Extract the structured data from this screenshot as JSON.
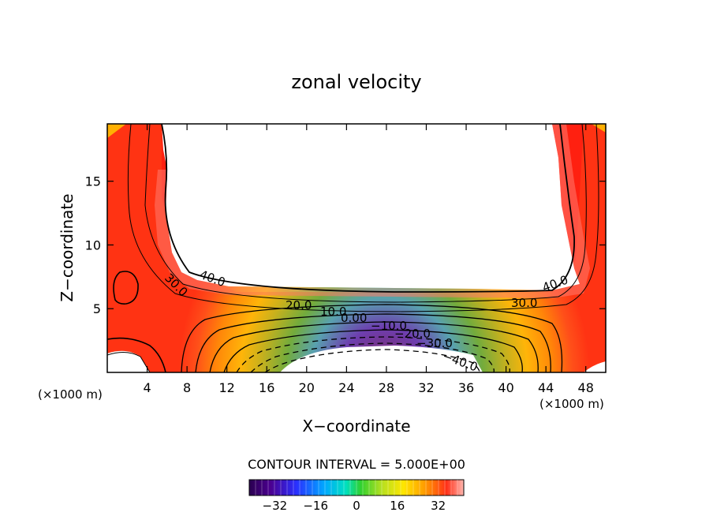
{
  "chart_data": {
    "type": "contour",
    "title": "zonal velocity",
    "xlabel": "X−coordinate",
    "ylabel": "Z−coordinate",
    "x_unit_left": "(×1000 m)",
    "x_unit_right": "(×1000 m)",
    "xlim": [
      0,
      50
    ],
    "ylim": [
      0,
      19.5
    ],
    "x_ticks": [
      4,
      8,
      12,
      16,
      20,
      24,
      28,
      32,
      36,
      40,
      44,
      48
    ],
    "y_ticks": [
      5,
      10,
      15
    ],
    "contour_interval_text": "CONTOUR INTERVAL = 5.000E+00",
    "contour_interval": 5.0,
    "contour_labels": [
      "40.0",
      "30.0",
      "20.0",
      "10.0",
      "0.00",
      "−10.0",
      "−20.0",
      "−30.0",
      "−40.0",
      "30.0",
      "40.0"
    ],
    "colorbar": {
      "range": [
        -42,
        42
      ],
      "ticks": [
        -32,
        -16,
        0,
        16,
        32
      ],
      "tick_labels": [
        "−32",
        "−16",
        "0",
        "16",
        "32"
      ]
    }
  },
  "colors": {
    "neg_strong": "#4b0082",
    "neg_mid": "#1e50ff",
    "zero": "#3cc83c",
    "pos_mid": "#ffe600",
    "pos_strong": "#ff2a1a",
    "pos_max": "#ffb0a6"
  }
}
